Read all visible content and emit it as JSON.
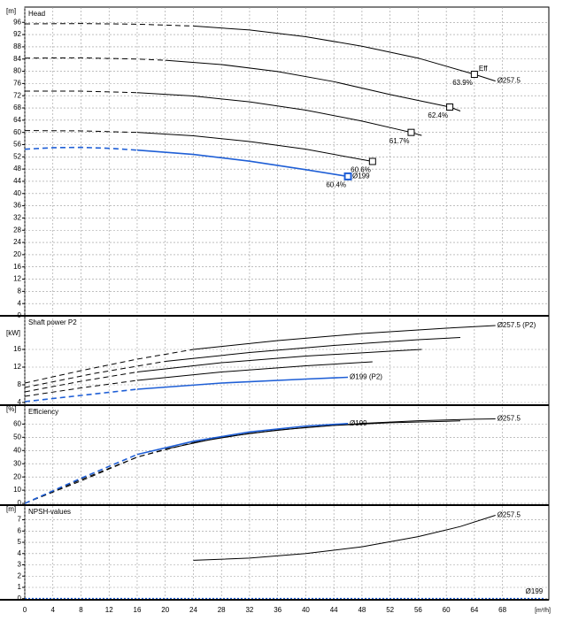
{
  "chart_data": {
    "type": "line",
    "xlim": [
      0,
      74.6
    ],
    "xticks": [
      0,
      4,
      8,
      12,
      16,
      20,
      24,
      28,
      32,
      36,
      40,
      44,
      48,
      52,
      56,
      60,
      64,
      68
    ],
    "xlabel": "[m³/h]",
    "panels": [
      {
        "title": "Head",
        "unit": "[m]",
        "ylim": [
          0,
          101
        ],
        "yticks": [
          0,
          4,
          8,
          12,
          16,
          20,
          24,
          28,
          32,
          36,
          40,
          44,
          48,
          52,
          56,
          60,
          64,
          68,
          72,
          76,
          80,
          84,
          88,
          92,
          96
        ],
        "series": [
          {
            "color": "#000000",
            "style": "dashed",
            "x": [
              0,
              8,
              16,
              24
            ],
            "values": [
              95.5,
              95.6,
              95.4,
              94.8
            ]
          },
          {
            "name": "Ø257.5",
            "color": "#000000",
            "style": "solid",
            "x": [
              24,
              32,
              40,
              48,
              56,
              64,
              67
            ],
            "values": [
              94.8,
              93.5,
              91.3,
              88.2,
              84.3,
              79,
              76.8
            ]
          },
          {
            "color": "#000000",
            "style": "dashed",
            "x": [
              0,
              8,
              16,
              20
            ],
            "values": [
              84.3,
              84.4,
              84,
              83.6
            ]
          },
          {
            "color": "#000000",
            "style": "solid",
            "x": [
              20,
              28,
              36,
              44,
              52,
              60.5,
              62
            ],
            "values": [
              83.6,
              82.2,
              79.9,
              76.6,
              72.4,
              68.3,
              67
            ]
          },
          {
            "color": "#000000",
            "style": "dashed",
            "x": [
              0,
              8,
              16
            ],
            "values": [
              73.5,
              73.5,
              73
            ]
          },
          {
            "color": "#000000",
            "style": "solid",
            "x": [
              16,
              24,
              32,
              40,
              48,
              55,
              56.5
            ],
            "values": [
              73,
              71.9,
              70,
              67.3,
              63.7,
              60,
              59
            ]
          },
          {
            "color": "#000000",
            "style": "dashed",
            "x": [
              0,
              8,
              16
            ],
            "values": [
              60.6,
              60.5,
              60
            ]
          },
          {
            "color": "#000000",
            "style": "solid",
            "x": [
              16,
              24,
              32,
              40,
              49.5
            ],
            "values": [
              60,
              58.9,
              57,
              54.5,
              50.5
            ]
          },
          {
            "color": "#1f5fd6",
            "style": "dashed",
            "x": [
              0,
              4,
              8,
              12,
              16
            ],
            "values": [
              54.5,
              55,
              55.1,
              54.8,
              54.2
            ]
          },
          {
            "name": "Ø199",
            "color": "#1f5fd6",
            "style": "solid",
            "x": [
              16,
              24,
              32,
              40,
              46
            ],
            "values": [
              54.2,
              52.8,
              50.6,
              47.8,
              45.6
            ]
          }
        ],
        "eff_label": "Eff",
        "markers": [
          {
            "x": 64,
            "y": 79,
            "label": "63.9%",
            "color": "#000000"
          },
          {
            "x": 60.5,
            "y": 68.3,
            "label": "62.4%",
            "color": "#000000"
          },
          {
            "x": 55,
            "y": 60,
            "label": "61.7%",
            "color": "#000000"
          },
          {
            "x": 49.5,
            "y": 50.5,
            "label": "60.6%",
            "color": "#000000"
          },
          {
            "x": 46,
            "y": 45.6,
            "label": "60.4%",
            "color": "#1f5fd6"
          }
        ]
      },
      {
        "title": "Shaft power P2",
        "unit": "[kW]",
        "ylim": [
          3.4,
          23.6
        ],
        "yticks": [
          4,
          8,
          12,
          16
        ],
        "series": [
          {
            "color": "#000000",
            "style": "dashed",
            "x": [
              0,
              8,
              16,
              24
            ],
            "values": [
              8.4,
              11.2,
              13.8,
              16
            ]
          },
          {
            "name": "Ø257.5 (P2)",
            "color": "#000000",
            "style": "solid",
            "x": [
              24,
              36,
              48,
              60,
              67
            ],
            "values": [
              16,
              18,
              19.6,
              20.8,
              21.4
            ]
          },
          {
            "color": "#000000",
            "style": "dashed",
            "x": [
              0,
              10,
              20
            ],
            "values": [
              7.4,
              10.6,
              13.3
            ]
          },
          {
            "color": "#000000",
            "style": "solid",
            "x": [
              20,
              32,
              44,
              56,
              62
            ],
            "values": [
              13.3,
              15.3,
              16.9,
              18.2,
              18.7
            ]
          },
          {
            "color": "#000000",
            "style": "dashed",
            "x": [
              0,
              8,
              16
            ],
            "values": [
              6.4,
              8.8,
              10.9
            ]
          },
          {
            "color": "#000000",
            "style": "solid",
            "x": [
              16,
              28,
              40,
              52,
              56.5
            ],
            "values": [
              10.9,
              13,
              14.5,
              15.6,
              16
            ]
          },
          {
            "color": "#000000",
            "style": "dashed",
            "x": [
              0,
              8,
              16
            ],
            "values": [
              5.4,
              7.3,
              9
            ]
          },
          {
            "color": "#000000",
            "style": "solid",
            "x": [
              16,
              28,
              40,
              49.5
            ],
            "values": [
              9,
              10.9,
              12.3,
              13.2
            ]
          },
          {
            "color": "#1f5fd6",
            "style": "dashed",
            "x": [
              0,
              8,
              16
            ],
            "values": [
              4.2,
              5.6,
              7
            ]
          },
          {
            "name": "Ø199 (P2)",
            "color": "#1f5fd6",
            "style": "solid",
            "x": [
              16,
              28,
              40,
              46
            ],
            "values": [
              7,
              8.4,
              9.3,
              9.7
            ]
          }
        ]
      },
      {
        "title": "Efficiency",
        "unit": "[%]",
        "ylim": [
          -1.3,
          74.3
        ],
        "yticks": [
          0,
          10,
          20,
          30,
          40,
          50,
          60
        ],
        "series": [
          {
            "color": "#000000",
            "style": "dashed",
            "x": [
              0,
              8,
              16,
              24
            ],
            "values": [
              0,
              18,
              35,
              46
            ]
          },
          {
            "name": "Ø257.5",
            "color": "#000000",
            "style": "solid",
            "x": [
              24,
              32,
              40,
              48,
              56,
              64,
              67
            ],
            "values": [
              46,
              53,
              57.5,
              60.5,
              62.5,
              63.7,
              63.9
            ]
          },
          {
            "color": "#000000",
            "style": "dashed",
            "x": [
              0,
              8,
              16,
              20
            ],
            "values": [
              0,
              17,
              35,
              41
            ]
          },
          {
            "color": "#000000",
            "style": "solid",
            "x": [
              20,
              28,
              36,
              44,
              52,
              62
            ],
            "values": [
              41,
              50,
              55.5,
              59,
              61,
              62.4
            ]
          },
          {
            "color": "#1f5fd6",
            "style": "dashed",
            "x": [
              0,
              8,
              16
            ],
            "values": [
              0,
              19,
              37
            ]
          },
          {
            "name": "Ø199",
            "color": "#1f5fd6",
            "style": "solid",
            "x": [
              16,
              24,
              32,
              40,
              46
            ],
            "values": [
              37,
              47,
              54,
              58.5,
              60.4
            ]
          }
        ]
      },
      {
        "title": "NPSH-values",
        "unit": "[m]",
        "ylim": [
          -0.1,
          8.3
        ],
        "yticks": [
          0,
          1,
          2,
          3,
          4,
          5,
          6,
          7
        ],
        "series": [
          {
            "name": "Ø257.5",
            "color": "#000000",
            "style": "solid",
            "x": [
              24,
              32,
              40,
              48,
              56,
              62,
              67
            ],
            "values": [
              3.4,
              3.6,
              4,
              4.6,
              5.5,
              6.4,
              7.4
            ]
          },
          {
            "name": "Ø199",
            "color": "#1f5fd6",
            "style": "dotted",
            "x": [
              0,
              74
            ],
            "values": [
              0,
              0
            ]
          }
        ]
      }
    ]
  }
}
